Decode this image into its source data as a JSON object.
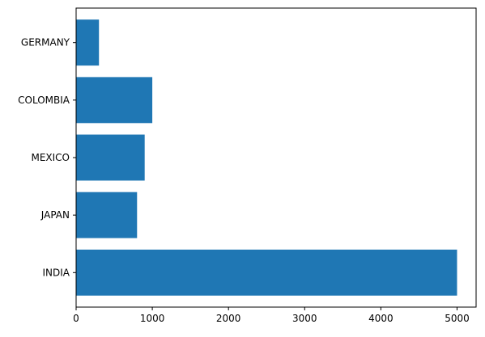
{
  "chart_data": {
    "type": "bar",
    "orientation": "horizontal",
    "categories": [
      "INDIA",
      "JAPAN",
      "MEXICO",
      "COLOMBIA",
      "GERMANY"
    ],
    "values": [
      5000,
      800,
      900,
      1000,
      300
    ],
    "xlim": [
      0,
      5250
    ],
    "xticks": [
      0,
      1000,
      2000,
      3000,
      4000,
      5000
    ],
    "xtick_labels": [
      "0",
      "1000",
      "2000",
      "3000",
      "4000",
      "5000"
    ],
    "bar_color": "#1f77b4",
    "grid": false,
    "legend": "none"
  }
}
